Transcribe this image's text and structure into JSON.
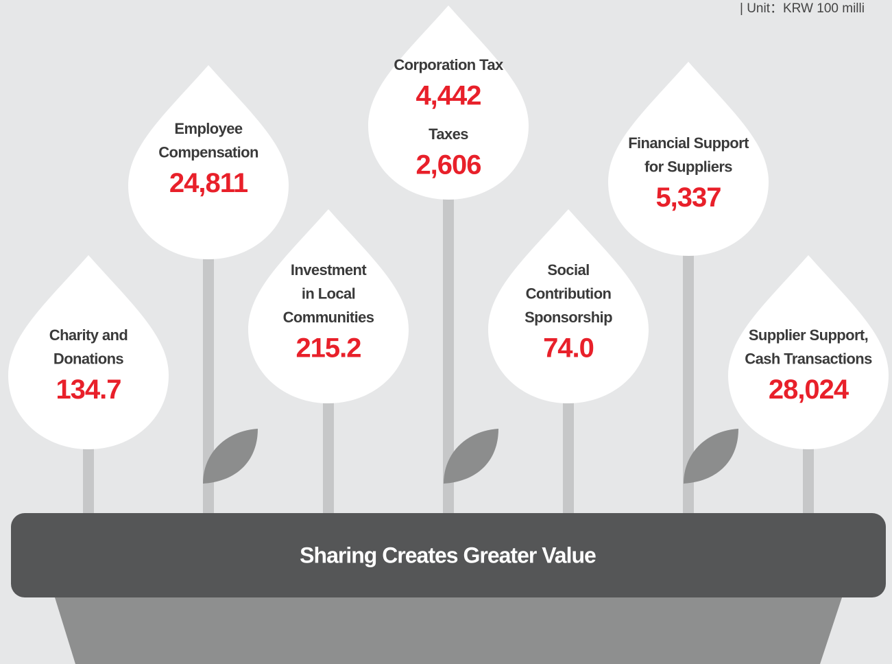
{
  "unit": "| Unit：KRW 100 milli",
  "title": "Sharing Creates Greater Value",
  "nodes": [
    {
      "entries": [
        {
          "label": [
            "Charity and",
            "Donations"
          ],
          "value": "134.7"
        }
      ]
    },
    {
      "entries": [
        {
          "label": [
            "Employee",
            "Compensation"
          ],
          "value": "24,811"
        }
      ]
    },
    {
      "entries": [
        {
          "label": [
            "Investment",
            "in Local",
            "Communities"
          ],
          "value": "215.2"
        }
      ]
    },
    {
      "entries": [
        {
          "label": [
            "Corporation Tax"
          ],
          "value": "4,442"
        },
        {
          "label": [
            "Taxes"
          ],
          "value": "2,606"
        }
      ]
    },
    {
      "entries": [
        {
          "label": [
            "Social",
            "Contribution",
            "Sponsorship"
          ],
          "value": "74.0"
        }
      ]
    },
    {
      "entries": [
        {
          "label": [
            "Financial Support",
            "for Suppliers"
          ],
          "value": "5,337"
        }
      ]
    },
    {
      "entries": [
        {
          "label": [
            "Supplier Support,",
            "Cash Transactions"
          ],
          "value": "28,024"
        }
      ]
    }
  ]
}
